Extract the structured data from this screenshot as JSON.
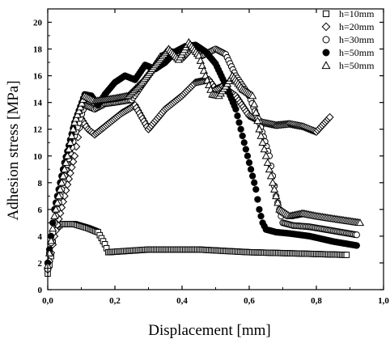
{
  "chart_data": {
    "type": "scatter",
    "xlabel": "Displacement [mm]",
    "ylabel": "Adhesion stress [MPa]",
    "xlim": [
      0,
      1.0
    ],
    "ylim": [
      0,
      21
    ],
    "xticks": [
      0.0,
      0.2,
      0.4,
      0.6,
      0.8,
      1.0
    ],
    "xtick_labels": [
      "0,0",
      "0,2",
      "0,4",
      "0,6",
      "0,8",
      "1,0"
    ],
    "yticks": [
      0,
      2,
      4,
      6,
      8,
      10,
      12,
      14,
      16,
      18,
      20
    ],
    "ytick_labels": [
      "0",
      "2",
      "4",
      "6",
      "8",
      "10",
      "12",
      "14",
      "16",
      "18",
      "20"
    ],
    "grid": false,
    "legend": {
      "placement": "top-right"
    },
    "series": [
      {
        "name": "h=10mm",
        "marker": "square-open",
        "color": "#000000",
        "x": [
          0.0,
          0.01,
          0.02,
          0.04,
          0.08,
          0.12,
          0.15,
          0.17,
          0.18,
          0.3,
          0.45,
          0.6,
          0.75,
          0.89
        ],
        "y": [
          1.2,
          2.5,
          4.5,
          4.9,
          4.9,
          4.6,
          4.3,
          3.4,
          2.8,
          3.0,
          3.0,
          2.8,
          2.7,
          2.6
        ]
      },
      {
        "name": "h=20mm",
        "marker": "diamond-open",
        "color": "#000000",
        "x": [
          0.0,
          0.02,
          0.05,
          0.08,
          0.1,
          0.12,
          0.14,
          0.17,
          0.22,
          0.26,
          0.3,
          0.35,
          0.4,
          0.44,
          0.48,
          0.5,
          0.52,
          0.56,
          0.6,
          0.64,
          0.68,
          0.72,
          0.76,
          0.8,
          0.84
        ],
        "y": [
          1.5,
          4.0,
          7.0,
          10.0,
          12.8,
          12.0,
          11.6,
          12.2,
          13.2,
          13.8,
          12.0,
          13.5,
          14.5,
          15.5,
          15.7,
          15.0,
          15.2,
          14.5,
          13.0,
          12.5,
          12.3,
          12.4,
          12.2,
          11.8,
          12.9
        ]
      },
      {
        "name": "h=30mm",
        "marker": "circle-open",
        "color": "#000000",
        "x": [
          0.0,
          0.02,
          0.05,
          0.08,
          0.11,
          0.14,
          0.17,
          0.2,
          0.25,
          0.3,
          0.34,
          0.37,
          0.4,
          0.43,
          0.46,
          0.5,
          0.53,
          0.56,
          0.6,
          0.63,
          0.66,
          0.68,
          0.7,
          0.73,
          0.78,
          0.85,
          0.92
        ],
        "y": [
          2.0,
          5.0,
          8.5,
          11.5,
          13.8,
          13.5,
          13.9,
          14.0,
          14.2,
          16.0,
          17.5,
          17.8,
          17.3,
          18.1,
          17.5,
          18.0,
          17.6,
          16.0,
          14.5,
          12.5,
          10.0,
          7.0,
          5.0,
          4.8,
          4.7,
          4.4,
          4.1
        ]
      },
      {
        "name": "h=50mm",
        "marker": "circle-filled",
        "color": "#000000",
        "x": [
          0.0,
          0.02,
          0.05,
          0.08,
          0.11,
          0.13,
          0.15,
          0.17,
          0.2,
          0.23,
          0.26,
          0.29,
          0.32,
          0.35,
          0.38,
          0.41,
          0.44,
          0.47,
          0.5,
          0.53,
          0.56,
          0.58,
          0.6,
          0.62,
          0.63,
          0.64,
          0.65,
          0.68,
          0.72,
          0.78,
          0.85,
          0.92
        ],
        "y": [
          2.0,
          6.0,
          9.5,
          12.5,
          14.6,
          14.5,
          13.8,
          14.6,
          15.5,
          16.0,
          15.7,
          16.8,
          16.5,
          17.0,
          17.8,
          18.2,
          18.3,
          17.8,
          16.9,
          15.3,
          13.5,
          11.5,
          9.5,
          7.5,
          6.0,
          5.0,
          4.5,
          4.3,
          4.2,
          4.0,
          3.6,
          3.3
        ]
      },
      {
        "name": "h=50mm",
        "marker": "triangle-open",
        "color": "#000000",
        "x": [
          0.0,
          0.02,
          0.05,
          0.08,
          0.11,
          0.14,
          0.17,
          0.2,
          0.24,
          0.28,
          0.32,
          0.36,
          0.39,
          0.42,
          0.45,
          0.47,
          0.49,
          0.51,
          0.53,
          0.55,
          0.58,
          0.61,
          0.63,
          0.65,
          0.67,
          0.69,
          0.72,
          0.76,
          0.8,
          0.85,
          0.93
        ],
        "y": [
          1.8,
          5.5,
          9.0,
          12.5,
          14.5,
          14.1,
          14.2,
          14.3,
          14.5,
          15.5,
          16.8,
          18.0,
          17.2,
          18.5,
          17.5,
          16.0,
          14.6,
          14.5,
          15.2,
          16.0,
          15.0,
          14.5,
          12.0,
          10.0,
          8.0,
          6.0,
          5.5,
          5.7,
          5.5,
          5.3,
          5.0
        ]
      }
    ]
  }
}
